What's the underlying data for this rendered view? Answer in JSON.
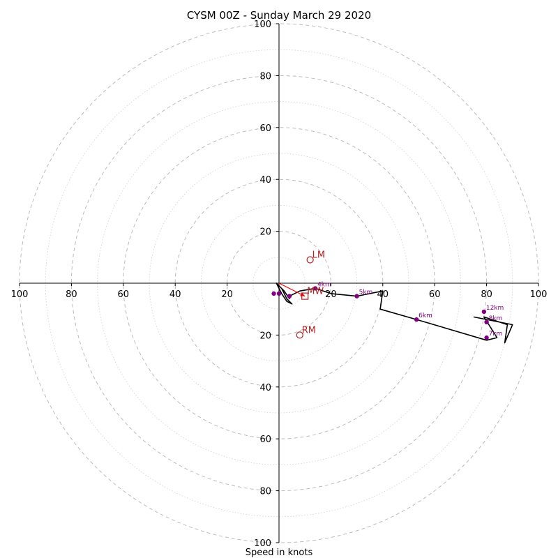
{
  "chart_data": {
    "type": "hodograph",
    "title": "CYSM 00Z - Sunday March 29 2020",
    "xlabel": "Speed in knots",
    "rmax": 100,
    "ring_labels": [
      "20",
      "40",
      "60",
      "80",
      "100"
    ],
    "x_tick_labels": [
      "100",
      "80",
      "60",
      "40",
      "20",
      "20",
      "40",
      "60",
      "80",
      "100"
    ],
    "y_tick_labels": [
      "100",
      "80",
      "60",
      "40",
      "20",
      "20",
      "40",
      "60",
      "80",
      "100"
    ],
    "colors": {
      "trace": "#000000",
      "height_points": "#800080",
      "storm_motion": "#b22222",
      "mean_wind_arrow": "#ff0000",
      "grid": "#bbbbbb"
    },
    "trace": [
      [
        0,
        -1
      ],
      [
        1,
        -2
      ],
      [
        3,
        -6
      ],
      [
        5,
        -8
      ],
      [
        3,
        -7
      ],
      [
        1,
        -4
      ],
      [
        -1,
        0
      ],
      [
        2,
        -3
      ],
      [
        4,
        -6
      ],
      [
        4,
        -5
      ],
      [
        8,
        -3
      ],
      [
        14,
        -2
      ],
      [
        20,
        -4
      ],
      [
        30,
        -5
      ],
      [
        40,
        -3
      ],
      [
        39,
        -10
      ],
      [
        53,
        -14
      ],
      [
        80,
        -22
      ],
      [
        84,
        -21
      ],
      [
        79,
        -13
      ],
      [
        88,
        -16
      ],
      [
        87,
        -23
      ],
      [
        90,
        -16
      ],
      [
        75,
        -13
      ]
    ],
    "height_points": [
      {
        "label": "",
        "u": -2,
        "v": -4
      },
      {
        "label": "",
        "u": 0,
        "v": -4
      },
      {
        "label": "",
        "u": 4,
        "v": -5
      },
      {
        "label": "4km",
        "u": 14,
        "v": -2
      },
      {
        "label": "5km",
        "u": 30,
        "v": -5
      },
      {
        "label": "6km",
        "u": 53,
        "v": -14
      },
      {
        "label": "7km",
        "u": 80,
        "v": -21
      },
      {
        "label": "8km",
        "u": 80,
        "v": -15
      },
      {
        "label": "12km",
        "u": 79,
        "v": -11
      }
    ],
    "storm_motion": [
      {
        "label": "LM",
        "u": 12,
        "v": 9,
        "marker": "circle"
      },
      {
        "label": "RM",
        "u": 8,
        "v": -20,
        "marker": "circle"
      },
      {
        "label": "MW",
        "u": 10,
        "v": -5,
        "marker": "square"
      }
    ],
    "mean_wind_arrow": {
      "from": [
        0,
        0
      ],
      "to": [
        10,
        -5
      ]
    }
  }
}
